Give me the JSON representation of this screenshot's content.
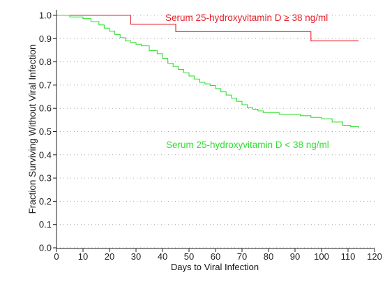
{
  "chart_data": {
    "type": "line",
    "step": true,
    "title": "",
    "xlabel": "Days to Viral Infection",
    "ylabel": "Fraction Surviving Without Viral Infection",
    "xlim": [
      0,
      120
    ],
    "ylim": [
      0,
      1.0
    ],
    "xticks": [
      0,
      10,
      20,
      30,
      40,
      50,
      60,
      70,
      80,
      90,
      100,
      110,
      120
    ],
    "xtick_labels": [
      "0",
      "10",
      "20",
      "30",
      "40",
      "50",
      "60",
      "70",
      "80",
      "90",
      "100",
      "110",
      "120"
    ],
    "yticks": [
      0,
      0.1,
      0.2,
      0.3,
      0.4,
      0.5,
      0.6,
      0.7,
      0.8,
      0.9,
      1.0
    ],
    "ytick_labels": [
      "0.0",
      "0.1",
      "0.2",
      "0.3",
      "0.4",
      "0.5",
      "0.6",
      "0.7",
      "0.8",
      "0.9",
      "1.0"
    ],
    "grid": "horizontal-dotted",
    "series": [
      {
        "name": "Serum 25-hydroxyvitamin D ≥ 38 ng/ml",
        "color": "#e8202a",
        "x": [
          0,
          28,
          45,
          96,
          114
        ],
        "y": [
          1.0,
          0.962,
          0.93,
          0.89,
          0.89
        ]
      },
      {
        "name": "Serum 25-hydroxyvitamin D < 38 ng/ml",
        "color": "#33e033",
        "x": [
          0,
          5,
          10,
          13,
          16,
          18,
          20,
          22,
          24,
          26,
          28,
          30,
          32,
          35,
          38,
          40,
          42,
          44,
          46,
          48,
          50,
          52,
          54,
          56,
          58,
          60,
          62,
          64,
          66,
          68,
          70,
          72,
          74,
          76,
          78,
          80,
          84,
          88,
          92,
          96,
          100,
          104,
          108,
          111,
          114
        ],
        "y": [
          1.0,
          0.993,
          0.986,
          0.973,
          0.959,
          0.945,
          0.932,
          0.918,
          0.904,
          0.89,
          0.883,
          0.876,
          0.869,
          0.849,
          0.835,
          0.815,
          0.794,
          0.78,
          0.767,
          0.753,
          0.739,
          0.726,
          0.712,
          0.705,
          0.698,
          0.685,
          0.671,
          0.657,
          0.644,
          0.63,
          0.616,
          0.603,
          0.596,
          0.589,
          0.582,
          0.582,
          0.575,
          0.575,
          0.568,
          0.561,
          0.555,
          0.541,
          0.527,
          0.521,
          0.514
        ]
      }
    ]
  }
}
